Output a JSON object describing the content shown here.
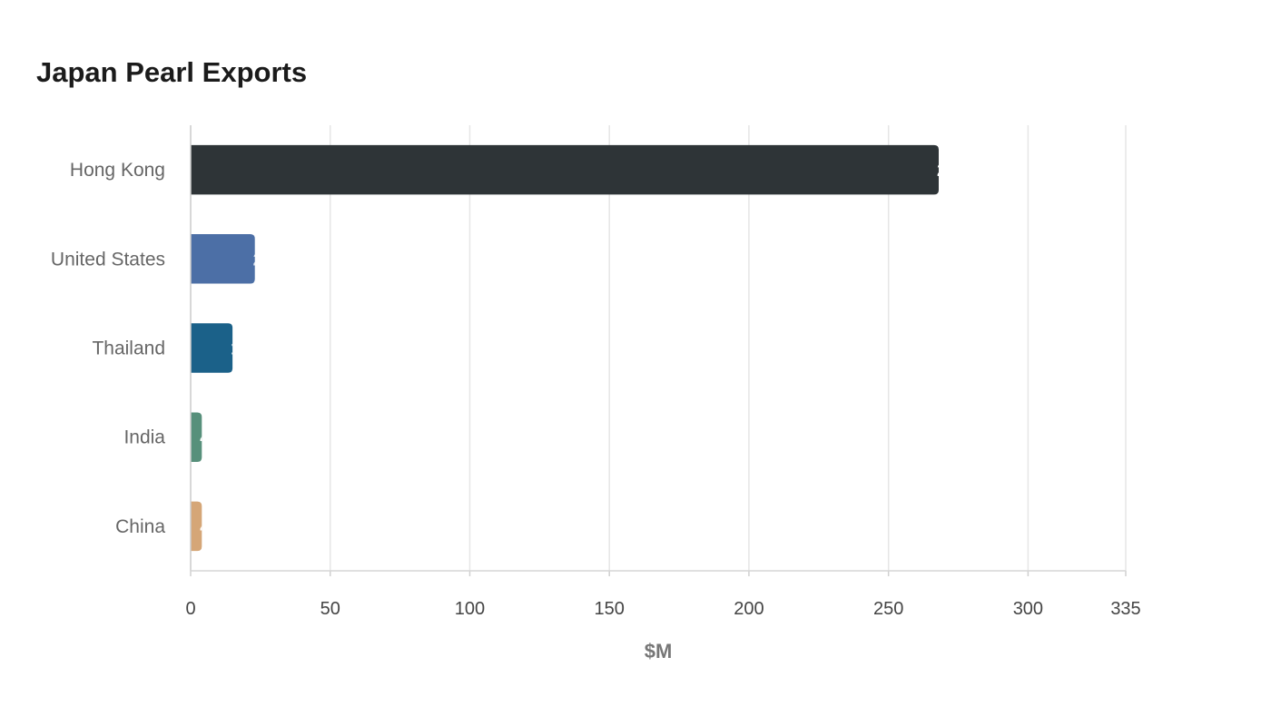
{
  "chart_data": {
    "type": "bar",
    "orientation": "horizontal",
    "title": "Japan Pearl Exports",
    "xlabel": "$M",
    "ylabel": "",
    "categories": [
      "Hong Kong",
      "United States",
      "Thailand",
      "India",
      "China"
    ],
    "values": [
      268,
      23,
      15,
      4,
      4
    ],
    "colors": [
      "#2e3437",
      "#4c6fa6",
      "#1b6189",
      "#57907b",
      "#d5a677"
    ],
    "xlim": [
      0,
      335
    ],
    "ticks": [
      0,
      50,
      100,
      150,
      200,
      250,
      300,
      335
    ],
    "tick_labels": [
      "0",
      "50",
      "100",
      "150",
      "200",
      "250",
      "300",
      "335"
    ],
    "grid": true,
    "legend": "none"
  }
}
